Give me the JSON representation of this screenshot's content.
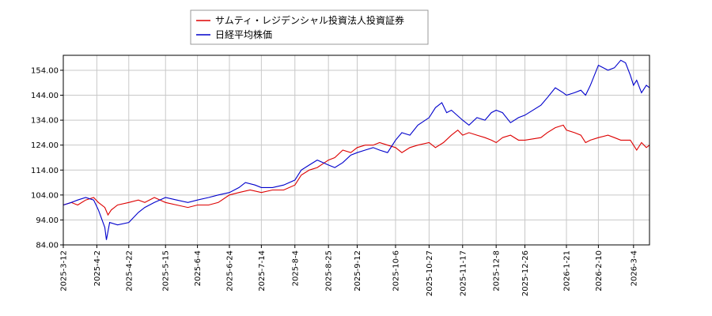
{
  "chart_data": {
    "type": "line",
    "title": "",
    "xlabel": "",
    "ylabel": "",
    "ylim": [
      84.0,
      160.0
    ],
    "yticks": [
      "84.00",
      "94.00",
      "104.00",
      "114.00",
      "124.00",
      "134.00",
      "144.00",
      "154.00"
    ],
    "xlim": [
      "2025-03-12",
      "2026-03-14"
    ],
    "xticks": [
      "2025-3-12",
      "2025-4-2",
      "2025-4-22",
      "2025-5-15",
      "2025-6-4",
      "2025-6-24",
      "2025-7-14",
      "2025-8-4",
      "2025-8-25",
      "2025-9-12",
      "2025-10-6",
      "2025-10-27",
      "2025-11-17",
      "2025-12-8",
      "2025-12-26",
      "2026-1-21",
      "2026-2-10",
      "2026-3-4"
    ],
    "grid": true,
    "legend_position": "top-center",
    "series": [
      {
        "name": "サムティ・レジデンシャル投資法人投資証券",
        "color": "#dd0000",
        "points": [
          [
            "2025-03-12",
            100
          ],
          [
            "2025-03-17",
            101
          ],
          [
            "2025-03-21",
            100
          ],
          [
            "2025-03-26",
            102
          ],
          [
            "2025-03-31",
            103
          ],
          [
            "2025-04-03",
            101
          ],
          [
            "2025-04-07",
            99
          ],
          [
            "2025-04-09",
            96
          ],
          [
            "2025-04-11",
            98
          ],
          [
            "2025-04-15",
            100
          ],
          [
            "2025-04-22",
            101
          ],
          [
            "2025-04-28",
            102
          ],
          [
            "2025-05-02",
            101
          ],
          [
            "2025-05-08",
            103
          ],
          [
            "2025-05-15",
            101
          ],
          [
            "2025-05-22",
            100
          ],
          [
            "2025-05-29",
            99
          ],
          [
            "2025-06-04",
            100
          ],
          [
            "2025-06-11",
            100
          ],
          [
            "2025-06-17",
            101
          ],
          [
            "2025-06-24",
            104
          ],
          [
            "2025-06-30",
            105
          ],
          [
            "2025-07-07",
            106
          ],
          [
            "2025-07-14",
            105
          ],
          [
            "2025-07-21",
            106
          ],
          [
            "2025-07-28",
            106
          ],
          [
            "2025-08-04",
            108
          ],
          [
            "2025-08-08",
            112
          ],
          [
            "2025-08-13",
            114
          ],
          [
            "2025-08-18",
            115
          ],
          [
            "2025-08-25",
            118
          ],
          [
            "2025-08-29",
            119
          ],
          [
            "2025-09-03",
            122
          ],
          [
            "2025-09-08",
            121
          ],
          [
            "2025-09-12",
            123
          ],
          [
            "2025-09-17",
            124
          ],
          [
            "2025-09-22",
            124
          ],
          [
            "2025-09-26",
            125
          ],
          [
            "2025-10-01",
            124
          ],
          [
            "2025-10-06",
            123
          ],
          [
            "2025-10-10",
            121
          ],
          [
            "2025-10-15",
            123
          ],
          [
            "2025-10-20",
            124
          ],
          [
            "2025-10-27",
            125
          ],
          [
            "2025-10-31",
            123
          ],
          [
            "2025-11-05",
            125
          ],
          [
            "2025-11-10",
            128
          ],
          [
            "2025-11-14",
            130
          ],
          [
            "2025-11-17",
            128
          ],
          [
            "2025-11-21",
            129
          ],
          [
            "2025-11-26",
            128
          ],
          [
            "2025-12-01",
            127
          ],
          [
            "2025-12-05",
            126
          ],
          [
            "2025-12-08",
            125
          ],
          [
            "2025-12-12",
            127
          ],
          [
            "2025-12-17",
            128
          ],
          [
            "2025-12-22",
            126
          ],
          [
            "2025-12-26",
            126
          ],
          [
            "2026-01-05",
            127
          ],
          [
            "2026-01-09",
            129
          ],
          [
            "2026-01-14",
            131
          ],
          [
            "2026-01-19",
            132
          ],
          [
            "2026-01-21",
            130
          ],
          [
            "2026-01-26",
            129
          ],
          [
            "2026-01-30",
            128
          ],
          [
            "2026-02-02",
            125
          ],
          [
            "2026-02-05",
            126
          ],
          [
            "2026-02-10",
            127
          ],
          [
            "2026-02-16",
            128
          ],
          [
            "2026-02-20",
            127
          ],
          [
            "2026-02-24",
            126
          ],
          [
            "2026-03-02",
            126
          ],
          [
            "2026-03-04",
            124
          ],
          [
            "2026-03-06",
            122
          ],
          [
            "2026-03-09",
            125
          ],
          [
            "2026-03-12",
            123
          ],
          [
            "2026-03-14",
            124
          ]
        ]
      },
      {
        "name": "日経平均株価",
        "color": "#0000cc",
        "points": [
          [
            "2025-03-12",
            100
          ],
          [
            "2025-03-17",
            101
          ],
          [
            "2025-03-21",
            102
          ],
          [
            "2025-03-26",
            103
          ],
          [
            "2025-03-31",
            102
          ],
          [
            "2025-04-03",
            98
          ],
          [
            "2025-04-07",
            91
          ],
          [
            "2025-04-08",
            86
          ],
          [
            "2025-04-10",
            93
          ],
          [
            "2025-04-15",
            92
          ],
          [
            "2025-04-22",
            93
          ],
          [
            "2025-04-28",
            97
          ],
          [
            "2025-05-02",
            99
          ],
          [
            "2025-05-08",
            101
          ],
          [
            "2025-05-15",
            103
          ],
          [
            "2025-05-22",
            102
          ],
          [
            "2025-05-29",
            101
          ],
          [
            "2025-06-04",
            102
          ],
          [
            "2025-06-11",
            103
          ],
          [
            "2025-06-17",
            104
          ],
          [
            "2025-06-24",
            105
          ],
          [
            "2025-06-30",
            107
          ],
          [
            "2025-07-04",
            109
          ],
          [
            "2025-07-10",
            108
          ],
          [
            "2025-07-14",
            107
          ],
          [
            "2025-07-21",
            107
          ],
          [
            "2025-07-28",
            108
          ],
          [
            "2025-08-04",
            110
          ],
          [
            "2025-08-08",
            114
          ],
          [
            "2025-08-13",
            116
          ],
          [
            "2025-08-18",
            118
          ],
          [
            "2025-08-25",
            116
          ],
          [
            "2025-08-29",
            115
          ],
          [
            "2025-09-03",
            117
          ],
          [
            "2025-09-08",
            120
          ],
          [
            "2025-09-12",
            121
          ],
          [
            "2025-09-17",
            122
          ],
          [
            "2025-09-22",
            123
          ],
          [
            "2025-09-26",
            122
          ],
          [
            "2025-10-01",
            121
          ],
          [
            "2025-10-06",
            126
          ],
          [
            "2025-10-10",
            129
          ],
          [
            "2025-10-15",
            128
          ],
          [
            "2025-10-20",
            132
          ],
          [
            "2025-10-27",
            135
          ],
          [
            "2025-10-31",
            139
          ],
          [
            "2025-11-04",
            141
          ],
          [
            "2025-11-07",
            137
          ],
          [
            "2025-11-10",
            138
          ],
          [
            "2025-11-17",
            134
          ],
          [
            "2025-11-21",
            132
          ],
          [
            "2025-11-26",
            135
          ],
          [
            "2025-12-01",
            134
          ],
          [
            "2025-12-05",
            137
          ],
          [
            "2025-12-08",
            138
          ],
          [
            "2025-12-12",
            137
          ],
          [
            "2025-12-17",
            133
          ],
          [
            "2025-12-22",
            135
          ],
          [
            "2025-12-26",
            136
          ],
          [
            "2026-01-05",
            140
          ],
          [
            "2026-01-09",
            143
          ],
          [
            "2026-01-14",
            147
          ],
          [
            "2026-01-19",
            145
          ],
          [
            "2026-01-21",
            144
          ],
          [
            "2026-01-26",
            145
          ],
          [
            "2026-01-30",
            146
          ],
          [
            "2026-02-02",
            144
          ],
          [
            "2026-02-05",
            148
          ],
          [
            "2026-02-10",
            156
          ],
          [
            "2026-02-16",
            154
          ],
          [
            "2026-02-20",
            155
          ],
          [
            "2026-02-24",
            158
          ],
          [
            "2026-02-27",
            157
          ],
          [
            "2026-03-02",
            152
          ],
          [
            "2026-03-04",
            148
          ],
          [
            "2026-03-06",
            150
          ],
          [
            "2026-03-09",
            145
          ],
          [
            "2026-03-12",
            148
          ],
          [
            "2026-03-14",
            147
          ]
        ]
      }
    ]
  }
}
